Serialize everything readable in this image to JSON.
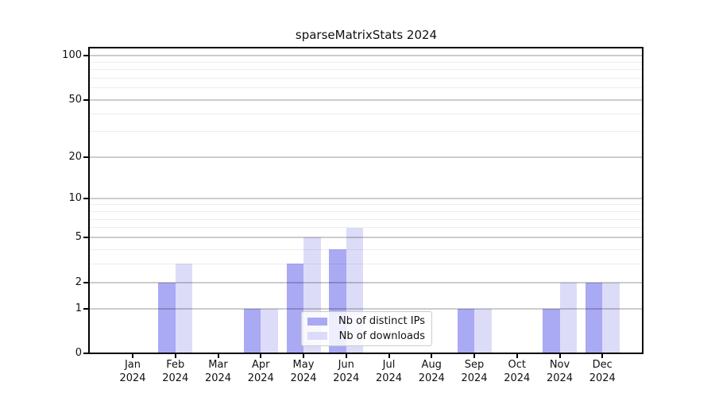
{
  "title": "sparseMatrixStats 2024",
  "chart_data": {
    "type": "bar",
    "y_scale": "log1p",
    "title": "sparseMatrixStats 2024",
    "months": [
      "Jan",
      "Feb",
      "Mar",
      "Apr",
      "May",
      "Jun",
      "Jul",
      "Aug",
      "Sep",
      "Oct",
      "Nov",
      "Dec"
    ],
    "year": "2024",
    "categories": [
      "Jan 2024",
      "Feb 2024",
      "Mar 2024",
      "Apr 2024",
      "May 2024",
      "Jun 2024",
      "Jul 2024",
      "Aug 2024",
      "Sep 2024",
      "Oct 2024",
      "Nov 2024",
      "Dec 2024"
    ],
    "series": [
      {
        "name": "Nb of distinct IPs",
        "color": "#a9a9f4",
        "values": [
          0,
          2,
          0,
          1,
          3,
          4,
          0,
          0,
          1,
          0,
          1,
          2
        ]
      },
      {
        "name": "Nb of downloads",
        "color": "#dcdcf9",
        "values": [
          0,
          3,
          0,
          1,
          5,
          6,
          0,
          0,
          1,
          0,
          2,
          2
        ]
      }
    ],
    "y_axis": {
      "tick_values": [
        0,
        1,
        2,
        5,
        10,
        20,
        50,
        100
      ],
      "tick_labels": [
        "0",
        "1",
        "2",
        "5",
        "10",
        "20",
        "50",
        "100"
      ],
      "minor_gridlines": [
        3,
        4,
        6,
        7,
        8,
        9,
        30,
        40,
        60,
        70,
        80,
        90
      ],
      "ylim": [
        0,
        113
      ]
    },
    "grid": true,
    "legend_position": "lower-center",
    "style": {
      "axis_color": "#000000",
      "major_grid_color": "#cccccc",
      "minor_grid_color": "#ededed",
      "background": "#ffffff"
    }
  }
}
